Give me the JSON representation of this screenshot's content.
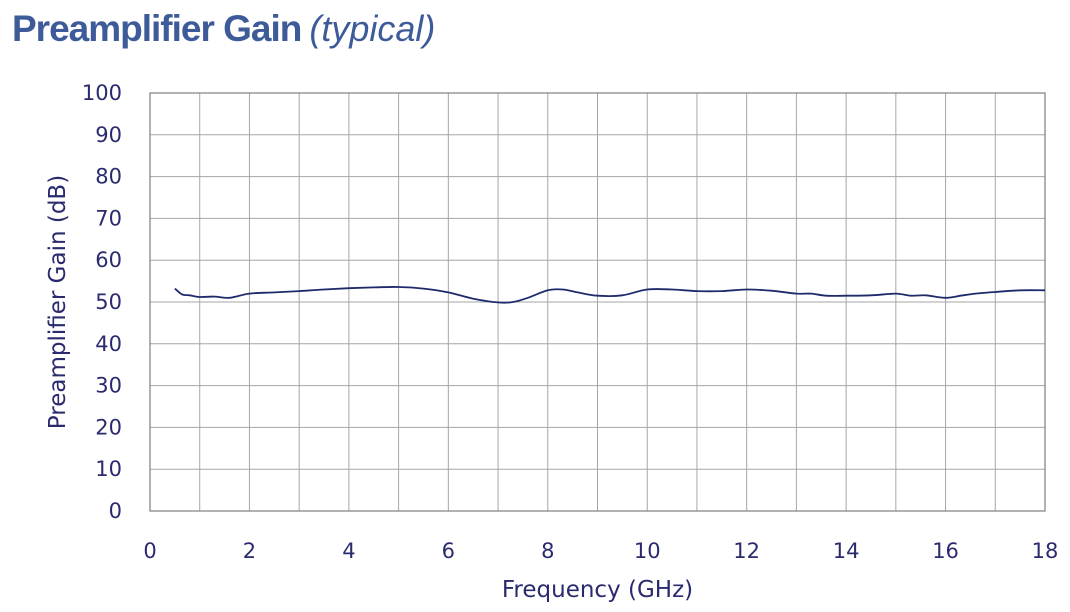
{
  "header": {
    "title": "Preamplifier Gain",
    "subtitle": "(typical)"
  },
  "colors": {
    "title": "#3d5a99",
    "text": "#2a2a6e",
    "line": "#1f2a6b",
    "grid": "#a6a6a6"
  },
  "chart_data": {
    "type": "line",
    "xlabel": "Frequency (GHz)",
    "ylabel": "Preamplifier Gain (dB)",
    "xlim": [
      0,
      18
    ],
    "ylim": [
      0,
      100
    ],
    "x_ticks": [
      0,
      2,
      4,
      6,
      8,
      10,
      12,
      14,
      16,
      18
    ],
    "y_ticks": [
      0,
      10,
      20,
      30,
      40,
      50,
      60,
      70,
      80,
      90,
      100
    ],
    "grid": true,
    "legend": "none",
    "series": [
      {
        "x": [
          0.5,
          0.65,
          0.8,
          1.0,
          1.3,
          1.6,
          2.0,
          2.5,
          3.0,
          3.5,
          4.0,
          4.5,
          5.0,
          5.5,
          6.0,
          6.5,
          7.0,
          7.3,
          7.6,
          8.0,
          8.3,
          8.6,
          9.0,
          9.5,
          10.0,
          10.5,
          11.0,
          11.5,
          12.0,
          12.5,
          13.0,
          13.3,
          13.6,
          14.0,
          14.5,
          15.0,
          15.3,
          15.6,
          16.0,
          16.3,
          16.6,
          17.0,
          17.5,
          18.0
        ],
        "y": [
          53.2,
          51.8,
          51.6,
          51.2,
          51.3,
          51.0,
          52.0,
          52.3,
          52.6,
          53.0,
          53.3,
          53.5,
          53.6,
          53.2,
          52.3,
          50.8,
          49.9,
          50.0,
          51.0,
          52.8,
          53.0,
          52.3,
          51.5,
          51.6,
          53.0,
          53.0,
          52.6,
          52.6,
          53.0,
          52.7,
          52.0,
          52.0,
          51.5,
          51.5,
          51.6,
          52.0,
          51.5,
          51.6,
          51.0,
          51.5,
          52.0,
          52.4,
          52.8,
          52.8
        ]
      }
    ]
  }
}
